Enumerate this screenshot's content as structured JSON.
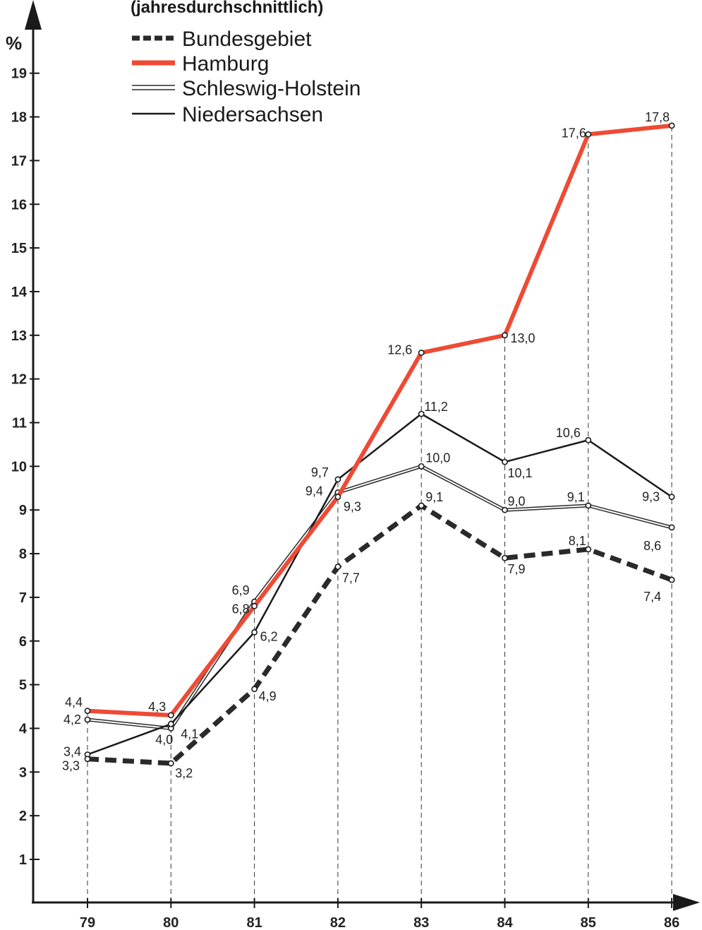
{
  "chart_data": {
    "type": "line",
    "title": "(jahresdurchschnittlich)",
    "ylabel": "%",
    "xlabel": "",
    "categories": [
      "79",
      "80",
      "81",
      "82",
      "83",
      "84",
      "85",
      "86"
    ],
    "yticks": [
      "1",
      "2",
      "3",
      "4",
      "5",
      "6",
      "7",
      "8",
      "9",
      "10",
      "11",
      "12",
      "13",
      "14",
      "15",
      "16",
      "17",
      "18",
      "19"
    ],
    "ylim": [
      0,
      20
    ],
    "grid": "vertical dashed drop lines at each year",
    "legend_position": "top-left",
    "series": [
      {
        "name": "Bundesgebiet",
        "color": "#2a2a2a",
        "style": "dashed",
        "values": [
          3.3,
          3.2,
          4.9,
          7.7,
          9.1,
          7.9,
          8.1,
          7.4
        ],
        "labels": [
          "3,3",
          "3,2",
          "4,9",
          "7,7",
          "9,1",
          "7,9",
          "8,1",
          "7,4"
        ]
      },
      {
        "name": "Hamburg",
        "color": "#ee4a35",
        "style": "solid-thick",
        "values": [
          4.4,
          4.3,
          6.8,
          9.3,
          12.6,
          13.0,
          17.6,
          17.8
        ],
        "labels": [
          "4,4",
          "4,3",
          "6,8",
          "9,3",
          "12,6",
          "13,0",
          "17,6",
          "17,8"
        ]
      },
      {
        "name": "Schleswig-Holstein",
        "color": "#2a2a2a",
        "style": "double",
        "values": [
          4.2,
          4.0,
          6.9,
          9.4,
          10.0,
          9.0,
          9.1,
          8.6
        ],
        "labels": [
          "4,2",
          "4,0",
          "6,9",
          "9,4",
          "10,0",
          "9,0",
          "9,1",
          "8,6"
        ]
      },
      {
        "name": "Niedersachsen",
        "color": "#1a1a1a",
        "style": "solid-thin",
        "values": [
          3.4,
          4.1,
          6.2,
          9.7,
          11.2,
          10.1,
          10.6,
          9.3
        ],
        "labels": [
          "3,4",
          "4,1",
          "6,2",
          "9,7",
          "11,2",
          "10,1",
          "10,6",
          "9,3"
        ]
      }
    ]
  }
}
